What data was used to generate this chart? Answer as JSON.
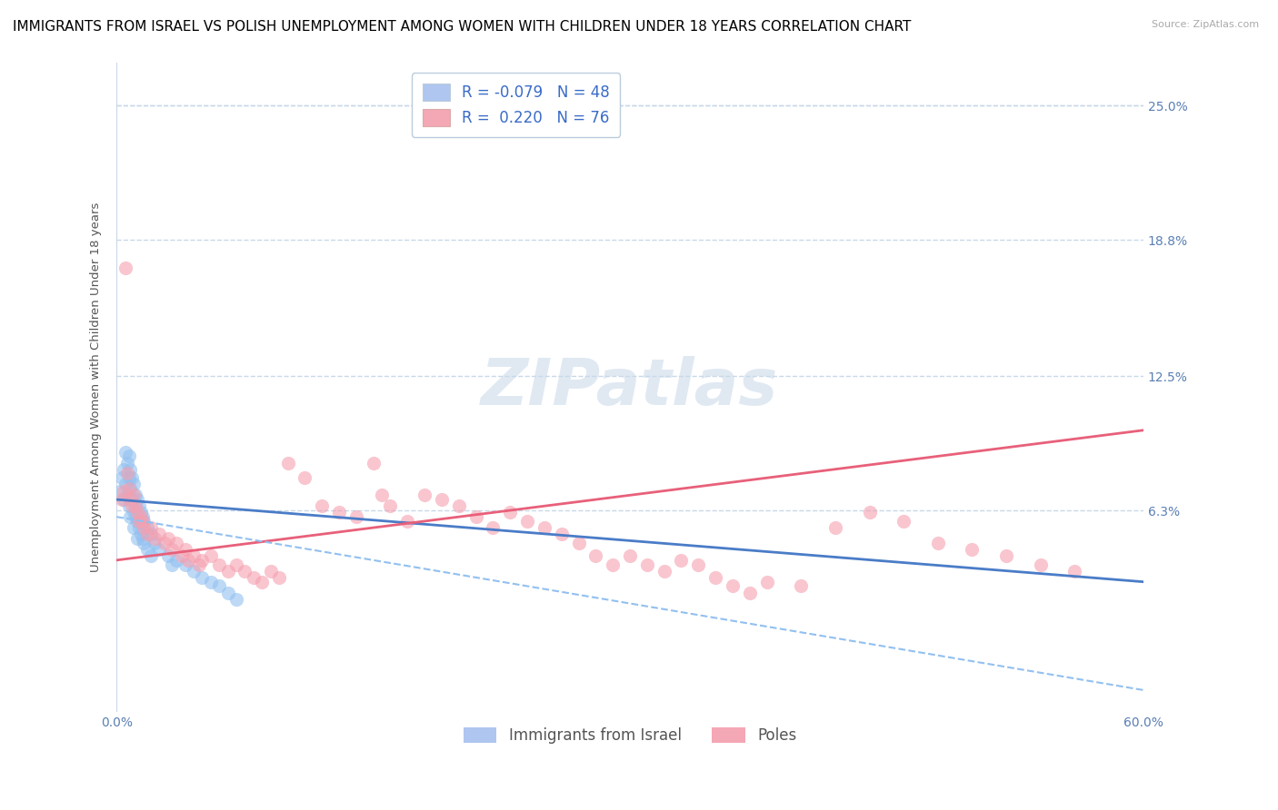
{
  "title": "IMMIGRANTS FROM ISRAEL VS POLISH UNEMPLOYMENT AMONG WOMEN WITH CHILDREN UNDER 18 YEARS CORRELATION CHART",
  "source": "Source: ZipAtlas.com",
  "ylabel": "Unemployment Among Women with Children Under 18 years",
  "xlim": [
    0.0,
    0.6
  ],
  "ylim": [
    -0.03,
    0.27
  ],
  "xticks": [
    0.0,
    0.6
  ],
  "xticklabels": [
    "0.0%",
    "60.0%"
  ],
  "yticks": [
    0.063,
    0.125,
    0.188,
    0.25
  ],
  "yticklabels": [
    "6.3%",
    "12.5%",
    "18.8%",
    "25.0%"
  ],
  "blue_scatter": [
    [
      0.002,
      0.072
    ],
    [
      0.003,
      0.078
    ],
    [
      0.004,
      0.082
    ],
    [
      0.004,
      0.068
    ],
    [
      0.005,
      0.09
    ],
    [
      0.005,
      0.075
    ],
    [
      0.006,
      0.085
    ],
    [
      0.006,
      0.07
    ],
    [
      0.007,
      0.088
    ],
    [
      0.007,
      0.078
    ],
    [
      0.007,
      0.065
    ],
    [
      0.008,
      0.082
    ],
    [
      0.008,
      0.073
    ],
    [
      0.008,
      0.06
    ],
    [
      0.009,
      0.078
    ],
    [
      0.009,
      0.068
    ],
    [
      0.01,
      0.075
    ],
    [
      0.01,
      0.062
    ],
    [
      0.01,
      0.055
    ],
    [
      0.011,
      0.07
    ],
    [
      0.011,
      0.06
    ],
    [
      0.012,
      0.068
    ],
    [
      0.012,
      0.058
    ],
    [
      0.012,
      0.05
    ],
    [
      0.013,
      0.065
    ],
    [
      0.013,
      0.055
    ],
    [
      0.014,
      0.062
    ],
    [
      0.014,
      0.052
    ],
    [
      0.015,
      0.06
    ],
    [
      0.015,
      0.05
    ],
    [
      0.016,
      0.058
    ],
    [
      0.016,
      0.048
    ],
    [
      0.018,
      0.055
    ],
    [
      0.018,
      0.045
    ],
    [
      0.02,
      0.052
    ],
    [
      0.02,
      0.042
    ],
    [
      0.022,
      0.048
    ],
    [
      0.025,
      0.045
    ],
    [
      0.03,
      0.042
    ],
    [
      0.032,
      0.038
    ],
    [
      0.035,
      0.04
    ],
    [
      0.04,
      0.038
    ],
    [
      0.045,
      0.035
    ],
    [
      0.05,
      0.032
    ],
    [
      0.055,
      0.03
    ],
    [
      0.06,
      0.028
    ],
    [
      0.065,
      0.025
    ],
    [
      0.07,
      0.022
    ]
  ],
  "pink_scatter": [
    [
      0.003,
      0.068
    ],
    [
      0.004,
      0.072
    ],
    [
      0.005,
      0.175
    ],
    [
      0.006,
      0.08
    ],
    [
      0.007,
      0.073
    ],
    [
      0.008,
      0.068
    ],
    [
      0.009,
      0.065
    ],
    [
      0.01,
      0.07
    ],
    [
      0.011,
      0.065
    ],
    [
      0.012,
      0.062
    ],
    [
      0.013,
      0.058
    ],
    [
      0.014,
      0.06
    ],
    [
      0.015,
      0.058
    ],
    [
      0.016,
      0.055
    ],
    [
      0.018,
      0.052
    ],
    [
      0.02,
      0.055
    ],
    [
      0.022,
      0.05
    ],
    [
      0.025,
      0.052
    ],
    [
      0.028,
      0.048
    ],
    [
      0.03,
      0.05
    ],
    [
      0.032,
      0.045
    ],
    [
      0.035,
      0.048
    ],
    [
      0.038,
      0.042
    ],
    [
      0.04,
      0.045
    ],
    [
      0.042,
      0.04
    ],
    [
      0.045,
      0.042
    ],
    [
      0.048,
      0.038
    ],
    [
      0.05,
      0.04
    ],
    [
      0.055,
      0.042
    ],
    [
      0.06,
      0.038
    ],
    [
      0.065,
      0.035
    ],
    [
      0.07,
      0.038
    ],
    [
      0.075,
      0.035
    ],
    [
      0.08,
      0.032
    ],
    [
      0.085,
      0.03
    ],
    [
      0.09,
      0.035
    ],
    [
      0.095,
      0.032
    ],
    [
      0.1,
      0.085
    ],
    [
      0.11,
      0.078
    ],
    [
      0.12,
      0.065
    ],
    [
      0.13,
      0.062
    ],
    [
      0.14,
      0.06
    ],
    [
      0.15,
      0.085
    ],
    [
      0.155,
      0.07
    ],
    [
      0.16,
      0.065
    ],
    [
      0.17,
      0.058
    ],
    [
      0.18,
      0.07
    ],
    [
      0.19,
      0.068
    ],
    [
      0.2,
      0.065
    ],
    [
      0.21,
      0.06
    ],
    [
      0.22,
      0.055
    ],
    [
      0.23,
      0.062
    ],
    [
      0.24,
      0.058
    ],
    [
      0.25,
      0.055
    ],
    [
      0.26,
      0.052
    ],
    [
      0.27,
      0.048
    ],
    [
      0.28,
      0.042
    ],
    [
      0.29,
      0.038
    ],
    [
      0.3,
      0.042
    ],
    [
      0.31,
      0.038
    ],
    [
      0.32,
      0.035
    ],
    [
      0.33,
      0.04
    ],
    [
      0.34,
      0.038
    ],
    [
      0.35,
      0.032
    ],
    [
      0.36,
      0.028
    ],
    [
      0.37,
      0.025
    ],
    [
      0.38,
      0.03
    ],
    [
      0.4,
      0.028
    ],
    [
      0.42,
      0.055
    ],
    [
      0.44,
      0.062
    ],
    [
      0.46,
      0.058
    ],
    [
      0.48,
      0.048
    ],
    [
      0.5,
      0.045
    ],
    [
      0.52,
      0.042
    ],
    [
      0.54,
      0.038
    ],
    [
      0.56,
      0.035
    ]
  ],
  "blue_trend_x": [
    0.0,
    0.6
  ],
  "blue_trend_y": [
    0.068,
    0.03
  ],
  "pink_trend_x": [
    0.0,
    0.6
  ],
  "pink_trend_y": [
    0.04,
    0.1
  ],
  "scatter_blue_color": "#92c0f0",
  "scatter_pink_color": "#f5a0b0",
  "trend_blue_color": "#4a7cc7",
  "trend_pink_color": "#e8607a",
  "grid_color": "#c8d8e8",
  "background_color": "#ffffff",
  "title_fontsize": 11,
  "axis_label_fontsize": 9.5,
  "tick_fontsize": 10,
  "legend_fontsize": 12,
  "watermark": "ZIPatlas"
}
